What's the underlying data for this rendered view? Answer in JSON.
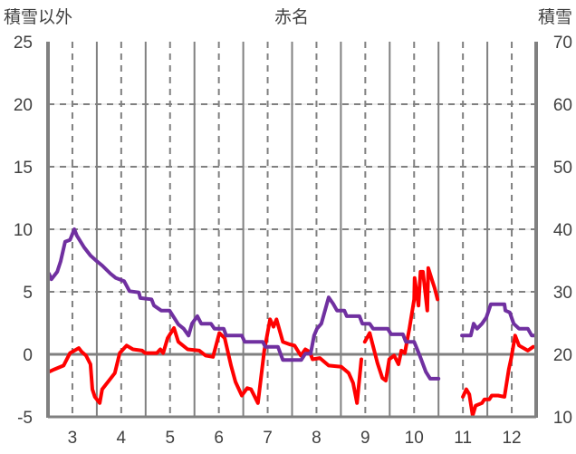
{
  "chart_data": {
    "type": "line",
    "title": "赤名",
    "ylabel_left": "積雪以外",
    "ylabel_right": "積雪",
    "x_ticks": [
      "3",
      "4",
      "5",
      "6",
      "7",
      "8",
      "9",
      "10",
      "11",
      "12"
    ],
    "xlim": [
      2.5,
      12.5
    ],
    "ylim_left": [
      -5,
      25
    ],
    "ylim_right": [
      10,
      70
    ],
    "y_ticks_left": [
      "25",
      "20",
      "15",
      "10",
      "5",
      "0",
      "-5"
    ],
    "y_ticks_right": [
      "70",
      "60",
      "50",
      "40",
      "30",
      "20",
      "10"
    ],
    "grid": true,
    "series": [
      {
        "name": "積雪以外",
        "axis": "left",
        "color": "#ff0000",
        "segments": [
          [
            [
              2.52,
              -1.4
            ],
            [
              2.63,
              -1.2
            ],
            [
              2.82,
              -0.9
            ],
            [
              2.95,
              0.1
            ],
            [
              3.13,
              0.5
            ],
            [
              3.19,
              0.2
            ],
            [
              3.28,
              -0.1
            ],
            [
              3.37,
              -0.8
            ],
            [
              3.41,
              -2.8
            ],
            [
              3.46,
              -3.4
            ],
            [
              3.56,
              -3.9
            ],
            [
              3.61,
              -2.8
            ],
            [
              3.87,
              -1.5
            ],
            [
              3.97,
              0.1
            ],
            [
              4.11,
              0.7
            ],
            [
              4.24,
              0.4
            ],
            [
              4.43,
              0.3
            ],
            [
              4.49,
              0.1
            ],
            [
              4.73,
              0.1
            ],
            [
              4.8,
              0.4
            ],
            [
              4.86,
              0.1
            ],
            [
              4.95,
              1.3
            ],
            [
              5.08,
              2.1
            ],
            [
              5.17,
              1.0
            ],
            [
              5.36,
              0.4
            ],
            [
              5.6,
              0.3
            ],
            [
              5.73,
              -0.1
            ],
            [
              5.88,
              -0.2
            ],
            [
              6.01,
              1.7
            ],
            [
              6.12,
              1.3
            ],
            [
              6.25,
              -0.9
            ],
            [
              6.34,
              -2.2
            ],
            [
              6.47,
              -3.3
            ],
            [
              6.58,
              -2.7
            ],
            [
              6.66,
              -2.8
            ],
            [
              6.8,
              -3.9
            ],
            [
              6.93,
              0.3
            ],
            [
              7.05,
              2.8
            ],
            [
              7.12,
              2.2
            ],
            [
              7.18,
              2.8
            ],
            [
              7.31,
              1.0
            ],
            [
              7.45,
              0.8
            ],
            [
              7.55,
              0.7
            ],
            [
              7.68,
              -0.1
            ],
            [
              7.77,
              0.4
            ],
            [
              7.86,
              0.2
            ],
            [
              7.92,
              -0.4
            ],
            [
              8.07,
              -0.3
            ],
            [
              8.25,
              -0.9
            ],
            [
              8.51,
              -1.0
            ],
            [
              8.66,
              -1.5
            ],
            [
              8.75,
              -2.3
            ],
            [
              8.83,
              -3.9
            ],
            [
              8.92,
              -0.4
            ]
          ],
          [
            [
              8.99,
              1.0
            ],
            [
              9.09,
              1.7
            ],
            [
              9.25,
              -0.7
            ],
            [
              9.35,
              -1.9
            ],
            [
              9.42,
              -2.1
            ],
            [
              9.49,
              -0.4
            ],
            [
              9.59,
              -0.1
            ],
            [
              9.68,
              -0.8
            ],
            [
              9.74,
              0.3
            ],
            [
              9.81,
              0.1
            ],
            [
              9.9,
              2.0
            ],
            [
              10.0,
              4.4
            ],
            [
              10.01,
              6.1
            ],
            [
              10.09,
              3.9
            ],
            [
              10.13,
              6.6
            ],
            [
              10.18,
              6.6
            ],
            [
              10.27,
              3.5
            ],
            [
              10.29,
              6.9
            ],
            [
              10.37,
              5.9
            ],
            [
              10.42,
              5.3
            ],
            [
              10.48,
              4.4
            ]
          ],
          [
            [
              11.0,
              -3.4
            ],
            [
              11.07,
              -2.8
            ],
            [
              11.13,
              -3.2
            ],
            [
              11.2,
              -4.9
            ],
            [
              11.26,
              -4.1
            ],
            [
              11.39,
              -3.9
            ],
            [
              11.44,
              -3.6
            ],
            [
              11.54,
              -3.6
            ],
            [
              11.59,
              -3.3
            ],
            [
              11.72,
              -3.3
            ],
            [
              11.85,
              -3.4
            ],
            [
              11.94,
              -1.2
            ],
            [
              11.99,
              -0.3
            ],
            [
              12.07,
              1.5
            ],
            [
              12.15,
              0.7
            ],
            [
              12.33,
              0.3
            ],
            [
              12.44,
              0.6
            ]
          ]
        ]
      },
      {
        "name": "積雪",
        "axis": "right",
        "color": "#7030a0",
        "segments": [
          [
            [
              2.52,
              32.9
            ],
            [
              2.57,
              32.0
            ],
            [
              2.69,
              33.2
            ],
            [
              2.76,
              34.9
            ],
            [
              2.85,
              38.0
            ],
            [
              2.95,
              38.3
            ],
            [
              3.04,
              40.0
            ],
            [
              3.09,
              39.0
            ],
            [
              3.24,
              37.1
            ],
            [
              3.37,
              35.8
            ],
            [
              3.5,
              34.9
            ],
            [
              3.61,
              34.2
            ],
            [
              3.78,
              32.9
            ],
            [
              3.89,
              32.2
            ],
            [
              4.06,
              31.7
            ],
            [
              4.17,
              30.1
            ],
            [
              4.36,
              29.9
            ],
            [
              4.39,
              29.0
            ],
            [
              4.62,
              28.8
            ],
            [
              4.67,
              27.8
            ],
            [
              4.82,
              27.0
            ],
            [
              4.99,
              27.0
            ],
            [
              5.17,
              24.8
            ],
            [
              5.28,
              24.1
            ],
            [
              5.38,
              23.0
            ],
            [
              5.45,
              24.9
            ],
            [
              5.56,
              26.1
            ],
            [
              5.64,
              24.9
            ],
            [
              5.84,
              24.9
            ],
            [
              5.91,
              24.1
            ],
            [
              6.1,
              24.1
            ],
            [
              6.15,
              23.0
            ],
            [
              6.47,
              23.0
            ],
            [
              6.53,
              22.0
            ],
            [
              6.9,
              22.0
            ],
            [
              6.95,
              21.2
            ],
            [
              7.21,
              21.2
            ],
            [
              7.31,
              19.1
            ],
            [
              7.69,
              19.1
            ],
            [
              7.77,
              20.1
            ],
            [
              7.88,
              20.1
            ],
            [
              7.95,
              23.0
            ],
            [
              8.01,
              24.1
            ],
            [
              8.1,
              24.9
            ],
            [
              8.25,
              29.1
            ],
            [
              8.34,
              28.1
            ],
            [
              8.42,
              27.0
            ],
            [
              8.57,
              27.0
            ],
            [
              8.62,
              26.1
            ],
            [
              8.88,
              26.1
            ],
            [
              8.94,
              24.9
            ],
            [
              9.09,
              24.9
            ],
            [
              9.16,
              24.1
            ],
            [
              9.46,
              24.1
            ],
            [
              9.53,
              23.2
            ],
            [
              9.77,
              23.2
            ],
            [
              9.83,
              22.0
            ],
            [
              10.0,
              22.0
            ],
            [
              10.11,
              19.9
            ],
            [
              10.24,
              17.2
            ],
            [
              10.33,
              16.1
            ],
            [
              10.5,
              16.1
            ]
          ],
          [
            [
              10.98,
              23.0
            ],
            [
              11.16,
              23.0
            ],
            [
              11.22,
              24.9
            ],
            [
              11.29,
              24.1
            ],
            [
              11.39,
              24.9
            ],
            [
              11.48,
              25.9
            ],
            [
              11.57,
              28.0
            ],
            [
              11.85,
              28.0
            ],
            [
              11.87,
              27.0
            ],
            [
              11.96,
              26.7
            ],
            [
              12.04,
              24.9
            ],
            [
              12.15,
              24.1
            ],
            [
              12.33,
              24.1
            ],
            [
              12.41,
              23.0
            ],
            [
              12.46,
              23.0
            ]
          ]
        ]
      }
    ]
  }
}
